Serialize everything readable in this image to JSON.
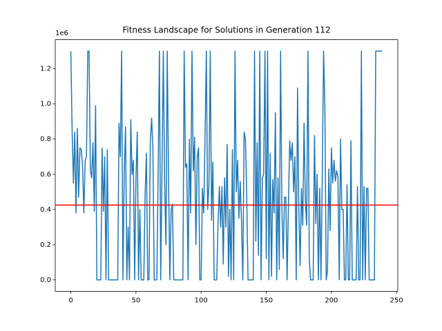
{
  "chart_data": {
    "type": "line",
    "title": "Fitness Landscape for Solutions in Generation 112",
    "y_offset_text": "1e6",
    "color": "#1f77b4",
    "hline": 425000,
    "hline_color": "#ff0000",
    "x": [
      0,
      1,
      2,
      3,
      4,
      5,
      6,
      7,
      8,
      9,
      10,
      11,
      12,
      13,
      14,
      15,
      16,
      17,
      18,
      19,
      20,
      21,
      22,
      23,
      24,
      25,
      26,
      27,
      28,
      29,
      30,
      31,
      32,
      33,
      34,
      35,
      36,
      37,
      38,
      39,
      40,
      41,
      42,
      43,
      44,
      45,
      46,
      47,
      48,
      49,
      50,
      51,
      52,
      53,
      54,
      55,
      56,
      57,
      58,
      59,
      60,
      61,
      62,
      63,
      64,
      65,
      66,
      67,
      68,
      69,
      70,
      71,
      72,
      73,
      74,
      75,
      76,
      77,
      78,
      79,
      80,
      81,
      82,
      83,
      84,
      85,
      86,
      87,
      88,
      89,
      90,
      91,
      92,
      93,
      94,
      95,
      96,
      97,
      98,
      99,
      100,
      101,
      102,
      103,
      104,
      105,
      106,
      107,
      108,
      109,
      110,
      111,
      112,
      113,
      114,
      115,
      116,
      117,
      118,
      119,
      120,
      121,
      122,
      123,
      124,
      125,
      126,
      127,
      128,
      129,
      130,
      131,
      132,
      133,
      134,
      135,
      136,
      137,
      138,
      139,
      140,
      141,
      142,
      143,
      144,
      145,
      146,
      147,
      148,
      149,
      150,
      151,
      152,
      153,
      154,
      155,
      156,
      157,
      158,
      159,
      160,
      161,
      162,
      163,
      164,
      165,
      166,
      167,
      168,
      169,
      170,
      171,
      172,
      173,
      174,
      175,
      176,
      177,
      178,
      179,
      180,
      181,
      182,
      183,
      184,
      185,
      186,
      187,
      188,
      189,
      190,
      191,
      192,
      193,
      194,
      195,
      196,
      197,
      198,
      199,
      200,
      201,
      202,
      203,
      204,
      205,
      206,
      207,
      208,
      209,
      210,
      211,
      212,
      213,
      214,
      215,
      216,
      217,
      218,
      219,
      220,
      221,
      222,
      223,
      224,
      225,
      226,
      227,
      228,
      229,
      230,
      231,
      232,
      233,
      234,
      235,
      236,
      237,
      238,
      239
    ],
    "values": [
      1300000,
      850000,
      550000,
      840000,
      380000,
      860000,
      470000,
      750000,
      740000,
      650000,
      380000,
      680000,
      700000,
      1300000,
      1300000,
      620000,
      580000,
      780000,
      390000,
      990000,
      0,
      0,
      0,
      0,
      750000,
      390000,
      700000,
      0,
      740000,
      0,
      0,
      0,
      0,
      0,
      0,
      0,
      0,
      890000,
      700000,
      1300000,
      0,
      610000,
      870000,
      0,
      300000,
      0,
      910000,
      600000,
      680000,
      0,
      580000,
      840000,
      0,
      400000,
      0,
      0,
      0,
      480000,
      720000,
      0,
      0,
      780000,
      920000,
      750000,
      0,
      0,
      0,
      590000,
      1300000,
      0,
      640000,
      1300000,
      550000,
      200000,
      1300000,
      580000,
      0,
      400000,
      430000,
      0,
      0,
      0,
      0,
      0,
      0,
      0,
      0,
      1300000,
      640000,
      660000,
      0,
      800000,
      380000,
      1300000,
      620000,
      810000,
      200000,
      700000,
      750000,
      0,
      0,
      520000,
      380000,
      800000,
      1300000,
      400000,
      540000,
      1300000,
      340000,
      670000,
      0,
      0,
      0,
      330000,
      530000,
      300000,
      530000,
      90000,
      580000,
      300000,
      770000,
      20000,
      400000,
      0,
      740000,
      0,
      1300000,
      500000,
      680000,
      350000,
      560000,
      330000,
      0,
      840000,
      800000,
      480000,
      0,
      0,
      0,
      0,
      0,
      1300000,
      220000,
      780000,
      140000,
      1300000,
      0,
      580000,
      600000,
      1300000,
      120000,
      1300000,
      0,
      720000,
      20000,
      570000,
      380000,
      950000,
      0,
      580000,
      60000,
      1300000,
      400000,
      120000,
      470000,
      470000,
      0,
      420000,
      790000,
      680000,
      780000,
      500000,
      700000,
      0,
      1090000,
      400000,
      80000,
      520000,
      310000,
      890000,
      450000,
      310000,
      1300000,
      120000,
      0,
      0,
      0,
      820000,
      320000,
      600000,
      0,
      520000,
      0,
      600000,
      1300000,
      980000,
      0,
      50000,
      630000,
      280000,
      750000,
      550000,
      680000,
      560000,
      620000,
      590000,
      0,
      800000,
      400000,
      400000,
      0,
      0,
      540000,
      0,
      0,
      790000,
      0,
      0,
      0,
      0,
      530000,
      0,
      0,
      1300000,
      0,
      530000,
      0,
      520000,
      520000,
      0,
      0,
      0,
      0,
      0,
      1300000,
      1300000,
      1300000,
      1300000,
      1300000,
      1300000
    ],
    "xlim": [
      -11.95,
      250.95
    ],
    "xticks": [
      0,
      50,
      100,
      150,
      200,
      250
    ],
    "ylim": [
      -65000,
      1365000
    ],
    "yticks": [
      {
        "value": 0,
        "label": "0.0"
      },
      {
        "value": 200000,
        "label": "0.2"
      },
      {
        "value": 400000,
        "label": "0.4"
      },
      {
        "value": 600000,
        "label": "0.6"
      },
      {
        "value": 800000,
        "label": "0.8"
      },
      {
        "value": 1000000,
        "label": "1.0"
      },
      {
        "value": 1200000,
        "label": "1.2"
      }
    ]
  }
}
